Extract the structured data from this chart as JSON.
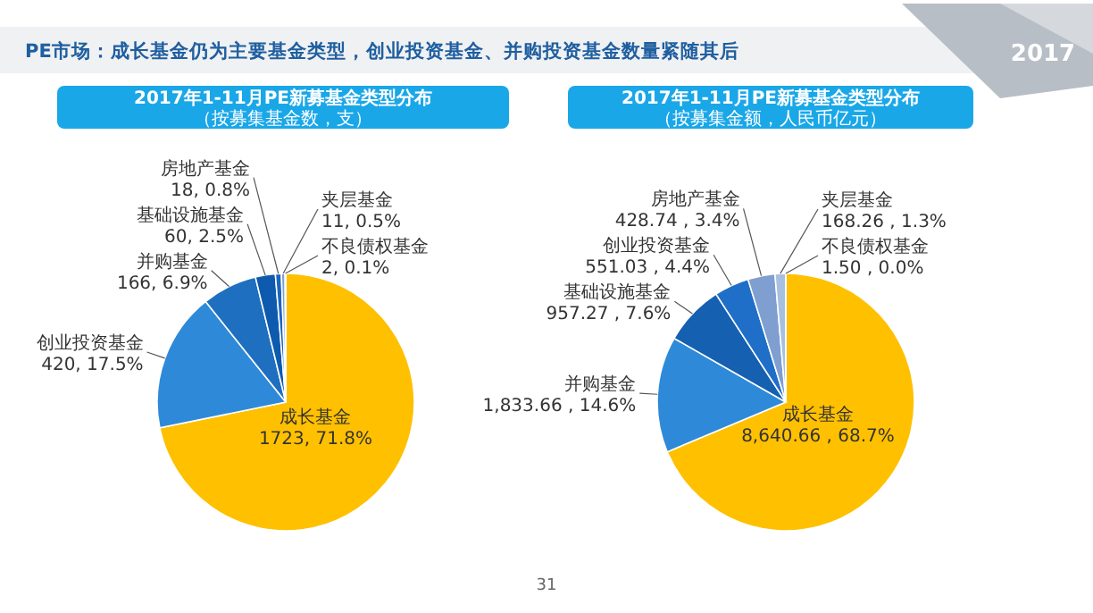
{
  "chart_data": [
    {
      "type": "pie",
      "title": "2017年1-11月PE新募基金类型分布",
      "subtitle": "（按募集基金数，支）",
      "annotations": [
        "PE市场：成长基金仍为主要基金类型，创业投资基金、并购投资基金数量紧随其后",
        "2017",
        "31"
      ],
      "categories": [
        "成长基金",
        "创业投资基金",
        "并购基金",
        "基础设施基金",
        "房地产基金",
        "夹层基金",
        "不良债权基金"
      ],
      "values": [
        1723,
        420,
        166,
        60,
        18,
        11,
        2
      ],
      "value_labels": [
        "1723, 71.8%",
        "420, 17.5%",
        "166, 6.9%",
        "60, 2.5%",
        "18, 0.8%",
        "11, 0.5%",
        "2, 0.1%"
      ],
      "colors": [
        "#ffc000",
        "#2e8ad8",
        "#1f6fc0",
        "#0e5aae",
        "#1a66bf",
        "#7f9fd0",
        "#a8c0e0"
      ]
    },
    {
      "type": "pie",
      "title": "2017年1-11月PE新募基金类型分布",
      "subtitle": "（按募集金额，人民币亿元）",
      "categories": [
        "成长基金",
        "并购基金",
        "基础设施基金",
        "创业投资基金",
        "房地产基金",
        "夹层基金",
        "不良债权基金"
      ],
      "values": [
        8640.66,
        1833.66,
        957.27,
        551.03,
        428.74,
        168.26,
        1.5
      ],
      "value_labels": [
        "8,640.66 , 68.7%",
        "1,833.66 , 14.6%",
        "957.27 , 7.6%",
        "551.03 , 4.4%",
        "428.74 , 3.4%",
        "168.26 , 1.3%",
        "1.50 , 0.0%"
      ],
      "colors": [
        "#ffc000",
        "#2e8ad8",
        "#1560b0",
        "#1f6fc8",
        "#7f9fd0",
        "#a8c0e0",
        "#c8d8f0"
      ]
    }
  ]
}
